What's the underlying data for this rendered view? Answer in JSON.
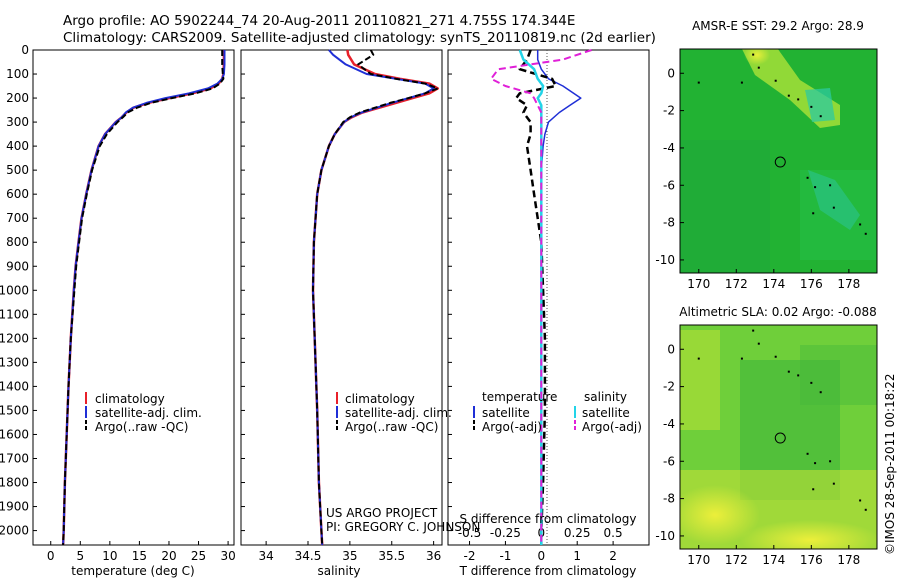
{
  "header": {
    "line1": "Argo profile: AO 5902244_74 20-Aug-2011 20110821_271 4.755S 174.344E",
    "line2": "Climatology: CARS2009. Satellite-adjusted climatology: synTS_20110819.nc (2d earlier)"
  },
  "credits": {
    "project": "US ARGO PROJECT",
    "pi": "PI: GREGORY C. JOHNSON",
    "stamp": "©IMOS 28-Sep-2011 00:18:22"
  },
  "colors": {
    "climatology": "#e8202a",
    "satellite": "#1f2fd6",
    "argo": "#000000",
    "sat_salinity": "#22d4e8",
    "argo_salinity": "#e020d8",
    "sst_map": "#22b233",
    "sla_map": "#6fcf3a"
  },
  "legends": {
    "profile": [
      "climatology",
      "satellite-adj. clim.",
      "Argo(..raw -QC)"
    ],
    "diff_left_title": "temperature",
    "diff_right_title": "salinity",
    "diff_left": [
      "satellite",
      "Argo(-adj)"
    ],
    "diff_right": [
      "satellite",
      "Argo(-adj)"
    ]
  },
  "chart_data": [
    {
      "id": "temperature",
      "type": "line",
      "xlabel": "temperature (deg C)",
      "ylabel": "",
      "xlim": [
        -3,
        31
      ],
      "ylim": [
        2060,
        0
      ],
      "xticks": [
        "0",
        "5",
        "10",
        "15",
        "20",
        "25",
        "30"
      ],
      "yticks": [
        "0",
        "100",
        "200",
        "300",
        "400",
        "500",
        "600",
        "700",
        "800",
        "900",
        "1000",
        "1100",
        "1200",
        "1300",
        "1400",
        "1500",
        "1600",
        "1700",
        "1800",
        "1900",
        "2000"
      ],
      "depth": [
        0,
        60,
        100,
        120,
        140,
        160,
        180,
        200,
        220,
        240,
        260,
        280,
        300,
        350,
        400,
        500,
        600,
        700,
        800,
        900,
        1000,
        1200,
        1400,
        1600,
        1800,
        2000,
        2060
      ],
      "series": [
        {
          "name": "climatology",
          "values": [
            29.3,
            29.3,
            29.2,
            29.0,
            28.4,
            27.0,
            24.0,
            20.0,
            16.5,
            14.0,
            12.8,
            12.0,
            11.0,
            9.2,
            8.1,
            6.9,
            6.0,
            5.2,
            4.7,
            4.2,
            3.9,
            3.4,
            3.0,
            2.7,
            2.4,
            2.2,
            2.1
          ]
        },
        {
          "name": "satellite-adj. clim.",
          "values": [
            29.4,
            29.4,
            29.3,
            29.0,
            28.2,
            26.6,
            23.4,
            19.4,
            16.2,
            13.9,
            12.7,
            12.0,
            11.0,
            9.2,
            8.1,
            6.9,
            6.0,
            5.2,
            4.7,
            4.2,
            3.9,
            3.4,
            3.0,
            2.7,
            2.4,
            2.2,
            2.1
          ]
        },
        {
          "name": "Argo(..raw -QC)",
          "values": [
            29.0,
            29.0,
            29.1,
            29.2,
            28.6,
            27.4,
            24.5,
            20.5,
            16.9,
            14.6,
            13.0,
            12.2,
            11.3,
            9.5,
            8.3,
            7.0,
            6.1,
            5.3,
            4.8,
            4.3,
            4.0,
            3.4,
            3.0,
            2.7,
            2.4,
            2.2,
            2.1
          ]
        }
      ]
    },
    {
      "id": "salinity",
      "type": "line",
      "xlabel": "salinity",
      "ylabel": "",
      "xlim": [
        33.7,
        36.1
      ],
      "ylim": [
        2060,
        0
      ],
      "xticks": [
        "34",
        "34.5",
        "35",
        "35.5",
        "36"
      ],
      "depth": [
        0,
        20,
        60,
        100,
        120,
        140,
        160,
        180,
        200,
        220,
        240,
        260,
        280,
        300,
        350,
        400,
        500,
        600,
        800,
        1000,
        1200,
        1500,
        1800,
        2000,
        2060
      ],
      "series": [
        {
          "name": "climatology",
          "values": [
            34.97,
            34.98,
            35.05,
            35.3,
            35.6,
            35.95,
            36.05,
            35.95,
            35.75,
            35.55,
            35.35,
            35.15,
            35.02,
            34.93,
            34.82,
            34.75,
            34.66,
            34.61,
            34.57,
            34.56,
            34.58,
            34.61,
            34.63,
            34.66,
            34.67
          ]
        },
        {
          "name": "satellite-adj. clim.",
          "values": [
            34.75,
            34.8,
            34.95,
            35.2,
            35.55,
            35.9,
            36.0,
            35.9,
            35.7,
            35.5,
            35.32,
            35.14,
            35.01,
            34.93,
            34.82,
            34.75,
            34.66,
            34.61,
            34.57,
            34.56,
            34.58,
            34.61,
            34.63,
            34.66,
            34.67
          ]
        },
        {
          "name": "Argo(..raw -QC)",
          "values": [
            35.25,
            35.28,
            35.1,
            35.25,
            35.55,
            35.9,
            36.05,
            35.9,
            35.7,
            35.48,
            35.3,
            35.12,
            35.0,
            34.92,
            34.82,
            34.75,
            34.66,
            34.61,
            34.57,
            34.56,
            34.58,
            34.61,
            34.63,
            34.66,
            34.67
          ]
        }
      ]
    },
    {
      "id": "differences",
      "type": "line",
      "xlabel": "T difference from climatology",
      "xlabel_top": "S difference from climatology",
      "ylabel": "",
      "xlim": [
        -2.6,
        3.0
      ],
      "ylim": [
        2060,
        0
      ],
      "xticks": [
        "-2",
        "-1",
        "0",
        "1",
        "2"
      ],
      "xticks_s": [
        "-0.5",
        "-0.25",
        "0",
        "0.25",
        "0.5"
      ],
      "depth": [
        0,
        40,
        80,
        120,
        150,
        180,
        200,
        230,
        260,
        300,
        350,
        400,
        500,
        600,
        800,
        1000,
        1200,
        1500,
        1800,
        2000,
        2060
      ],
      "series": [
        {
          "name": "temperature satellite",
          "values": [
            -0.1,
            -0.1,
            0.0,
            0.2,
            0.6,
            0.9,
            1.1,
            0.8,
            0.5,
            0.2,
            0.1,
            0.05,
            0.0,
            0.0,
            0.0,
            0.0,
            0.0,
            0.0,
            0.0,
            0.0,
            0.0
          ]
        },
        {
          "name": "temperature Argo(-adj)",
          "values": [
            -0.3,
            -0.4,
            -0.6,
            0.3,
            0.4,
            -0.6,
            -0.7,
            -0.4,
            -0.5,
            -0.3,
            -0.3,
            -0.4,
            -0.3,
            -0.2,
            0.0,
            0.05,
            0.1,
            0.1,
            0.05,
            0.0,
            0.0
          ]
        },
        {
          "name": "salinity satellite",
          "values": [
            -0.6,
            -0.5,
            -0.2,
            -0.1,
            0.05,
            0.0,
            -0.1,
            0.0,
            0.0,
            0.0,
            0.0,
            0.0,
            0.0,
            0.0,
            0.0,
            0.0,
            0.0,
            0.0,
            0.0,
            0.0,
            0.0
          ]
        },
        {
          "name": "salinity Argo(-adj)",
          "values": [
            1.4,
            0.6,
            -1.2,
            -1.4,
            -1.0,
            -0.3,
            -0.2,
            -0.1,
            0.0,
            0.0,
            0.0,
            0.0,
            0.0,
            0.0,
            0.0,
            0.0,
            0.0,
            0.0,
            0.0,
            0.0,
            0.0
          ]
        }
      ]
    },
    {
      "id": "sst_map",
      "type": "heatmap",
      "title": "AMSR-E SST: 29.2 Argo: 28.9",
      "xlim": [
        169,
        179.5
      ],
      "ylim": [
        -10.7,
        1.3
      ],
      "xticks": [
        "170",
        "172",
        "174",
        "176",
        "178"
      ],
      "yticks": [
        "0",
        "-2",
        "-4",
        "-6",
        "-8",
        "-10"
      ],
      "marker": {
        "lon": 174.344,
        "lat": -4.755
      }
    },
    {
      "id": "sla_map",
      "type": "heatmap",
      "title": "Altimetric SLA: 0.02 Argo: -0.088",
      "xlim": [
        169,
        179.5
      ],
      "ylim": [
        -10.7,
        1.3
      ],
      "xticks": [
        "170",
        "172",
        "174",
        "176",
        "178"
      ],
      "yticks": [
        "0",
        "-2",
        "-4",
        "-6",
        "-8",
        "-10"
      ],
      "marker": {
        "lon": 174.344,
        "lat": -4.755
      }
    }
  ]
}
